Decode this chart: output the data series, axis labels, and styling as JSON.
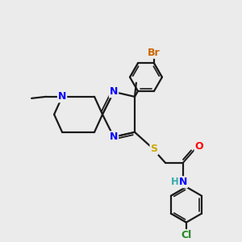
{
  "background_color": "#EBEBEB",
  "bond_color": "#1a1a1a",
  "atom_colors": {
    "N": "#0000FF",
    "S": "#CCAA00",
    "O": "#FF0000",
    "Br": "#CC6600",
    "Cl": "#228822",
    "H": "#33AAAA",
    "C": "#1a1a1a"
  },
  "figsize": [
    3.0,
    3.0
  ],
  "dpi": 100
}
